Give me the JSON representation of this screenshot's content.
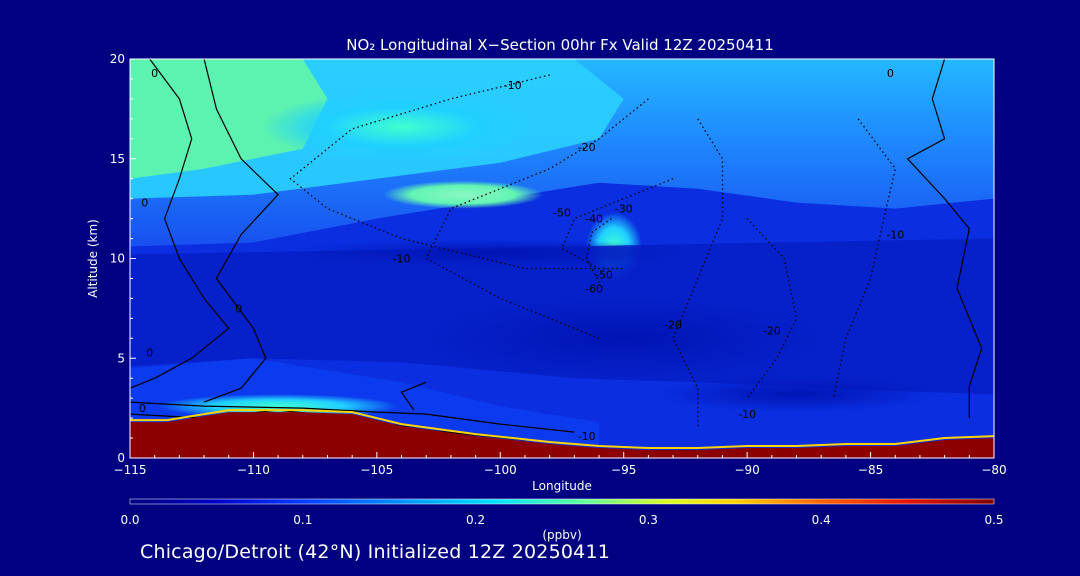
{
  "chart_data": {
    "type": "heatmap",
    "title": "NO₂ Longitudinal X−Section 00hr  Fx Valid 12Z 20250411",
    "xlabel": "Longitude",
    "ylabel": "Altitude (km)",
    "xlim": [
      -115,
      -80
    ],
    "ylim": [
      0,
      20
    ],
    "x_ticks": [
      -115,
      -110,
      -105,
      -100,
      -95,
      -90,
      -85,
      -80
    ],
    "x_tick_labels": [
      "−115",
      "−110",
      "−105",
      "−100",
      "−95",
      "−90",
      "−85",
      "−80"
    ],
    "y_ticks": [
      0,
      5,
      10,
      15,
      20
    ],
    "y_tick_labels": [
      "0",
      "5",
      "10",
      "15",
      "20"
    ],
    "colorbar": {
      "label": "(ppbv)",
      "range": [
        0,
        0.5
      ],
      "ticks": [
        0.0,
        0.1,
        0.2,
        0.3,
        0.4,
        0.5
      ],
      "tick_labels": [
        "0.0",
        "0.1",
        "0.2",
        "0.3",
        "0.4",
        "0.5"
      ]
    },
    "contour_labels": [
      {
        "lon": -114.0,
        "alt": 19.3,
        "text": "0"
      },
      {
        "lon": -99.5,
        "alt": 18.7,
        "text": "-10"
      },
      {
        "lon": -96.5,
        "alt": 15.6,
        "text": "-20"
      },
      {
        "lon": -95.0,
        "alt": 12.5,
        "text": "-30"
      },
      {
        "lon": -96.2,
        "alt": 12.0,
        "text": "-40"
      },
      {
        "lon": -97.5,
        "alt": 12.3,
        "text": "-50"
      },
      {
        "lon": -96.2,
        "alt": 8.5,
        "text": "-60"
      },
      {
        "lon": -95.8,
        "alt": 9.2,
        "text": "-50"
      },
      {
        "lon": -104.0,
        "alt": 10.0,
        "text": "-10"
      },
      {
        "lon": -93.0,
        "alt": 6.7,
        "text": "-20"
      },
      {
        "lon": -89.0,
        "alt": 6.4,
        "text": "-20"
      },
      {
        "lon": -84.0,
        "alt": 11.2,
        "text": "-10"
      },
      {
        "lon": -84.2,
        "alt": 19.3,
        "text": "0"
      },
      {
        "lon": -114.4,
        "alt": 12.8,
        "text": "0"
      },
      {
        "lon": -110.6,
        "alt": 7.5,
        "text": "0"
      },
      {
        "lon": -114.2,
        "alt": 5.3,
        "text": "0"
      },
      {
        "lon": -114.5,
        "alt": 2.5,
        "text": "0"
      },
      {
        "lon": -96.5,
        "alt": 1.1,
        "text": "-10"
      },
      {
        "lon": -90.0,
        "alt": 2.2,
        "text": "-10"
      }
    ],
    "grid": false,
    "legend": "none",
    "colormap": [
      "#00007f",
      "#0000c8",
      "#0a3cff",
      "#0096ff",
      "#00e0ff",
      "#5affa0",
      "#d8ff28",
      "#ffd400",
      "#ff6400",
      "#e61400",
      "#800000"
    ]
  },
  "footer": {
    "caption": "Chicago/Detroit (42°N) Initialized 12Z 20250411"
  },
  "colors": {
    "background": "#000080",
    "foreground": "#ffffff",
    "terrain": "#8c0000"
  }
}
